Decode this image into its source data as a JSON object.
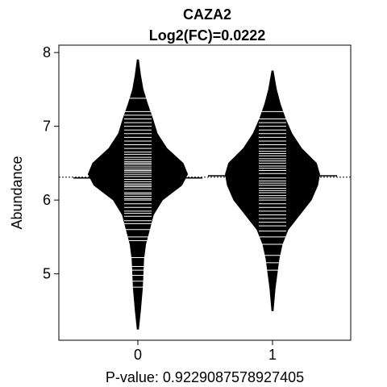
{
  "chart_data": {
    "type": "beanplot",
    "title": "CAZA2",
    "subtitle": "Log2(FC)=0.0222",
    "xlabel": "P-value: 0.9229087578927405",
    "ylabel": "Abundance",
    "categories": [
      "0",
      "1"
    ],
    "ylim": [
      4.1,
      8.1
    ],
    "yticks": [
      5,
      6,
      7,
      8
    ],
    "overall_mean": 6.31,
    "grid": false,
    "color": "#000000",
    "groups": [
      {
        "name": "0",
        "mean": 6.3,
        "min": 4.25,
        "max": 7.9,
        "density": [
          [
            4.25,
            0.01
          ],
          [
            4.5,
            0.04
          ],
          [
            4.8,
            0.07
          ],
          [
            5.0,
            0.08
          ],
          [
            5.2,
            0.09
          ],
          [
            5.4,
            0.12
          ],
          [
            5.6,
            0.18
          ],
          [
            5.8,
            0.24
          ],
          [
            6.0,
            0.38
          ],
          [
            6.2,
            0.68
          ],
          [
            6.35,
            0.77
          ],
          [
            6.5,
            0.7
          ],
          [
            6.7,
            0.45
          ],
          [
            6.9,
            0.3
          ],
          [
            7.1,
            0.23
          ],
          [
            7.3,
            0.15
          ],
          [
            7.5,
            0.08
          ],
          [
            7.7,
            0.04
          ],
          [
            7.9,
            0.01
          ]
        ],
        "observations": [
          4.82,
          4.9,
          4.98,
          5.05,
          5.1,
          5.22,
          5.45,
          5.5,
          5.6,
          5.68,
          5.72,
          5.78,
          5.82,
          5.85,
          5.9,
          5.95,
          6.0,
          6.02,
          6.05,
          6.08,
          6.1,
          6.15,
          6.18,
          6.2,
          6.22,
          6.25,
          6.28,
          6.3,
          6.32,
          6.35,
          6.38,
          6.4,
          6.42,
          6.45,
          6.48,
          6.5,
          6.52,
          6.55,
          6.58,
          6.62,
          6.65,
          6.7,
          6.75,
          6.8,
          6.85,
          6.9,
          6.95,
          7.0,
          7.05,
          7.1,
          7.15,
          7.2,
          7.38
        ]
      },
      {
        "name": "1",
        "mean": 6.33,
        "min": 4.5,
        "max": 7.75,
        "density": [
          [
            4.5,
            0.01
          ],
          [
            4.8,
            0.04
          ],
          [
            5.0,
            0.07
          ],
          [
            5.2,
            0.1
          ],
          [
            5.4,
            0.15
          ],
          [
            5.6,
            0.24
          ],
          [
            5.8,
            0.42
          ],
          [
            6.0,
            0.6
          ],
          [
            6.2,
            0.7
          ],
          [
            6.35,
            0.73
          ],
          [
            6.5,
            0.68
          ],
          [
            6.7,
            0.45
          ],
          [
            6.9,
            0.3
          ],
          [
            7.1,
            0.2
          ],
          [
            7.3,
            0.12
          ],
          [
            7.5,
            0.06
          ],
          [
            7.75,
            0.01
          ]
        ],
        "observations": [
          5.05,
          5.15,
          5.25,
          5.4,
          5.5,
          5.58,
          5.65,
          5.7,
          5.75,
          5.8,
          5.85,
          5.9,
          5.95,
          6.0,
          6.03,
          6.06,
          6.1,
          6.13,
          6.16,
          6.2,
          6.23,
          6.26,
          6.3,
          6.33,
          6.36,
          6.4,
          6.43,
          6.46,
          6.5,
          6.53,
          6.56,
          6.6,
          6.63,
          6.66,
          6.7,
          6.75,
          6.8,
          6.85,
          6.9,
          6.95,
          7.0,
          7.05,
          7.1,
          7.2
        ]
      }
    ]
  }
}
